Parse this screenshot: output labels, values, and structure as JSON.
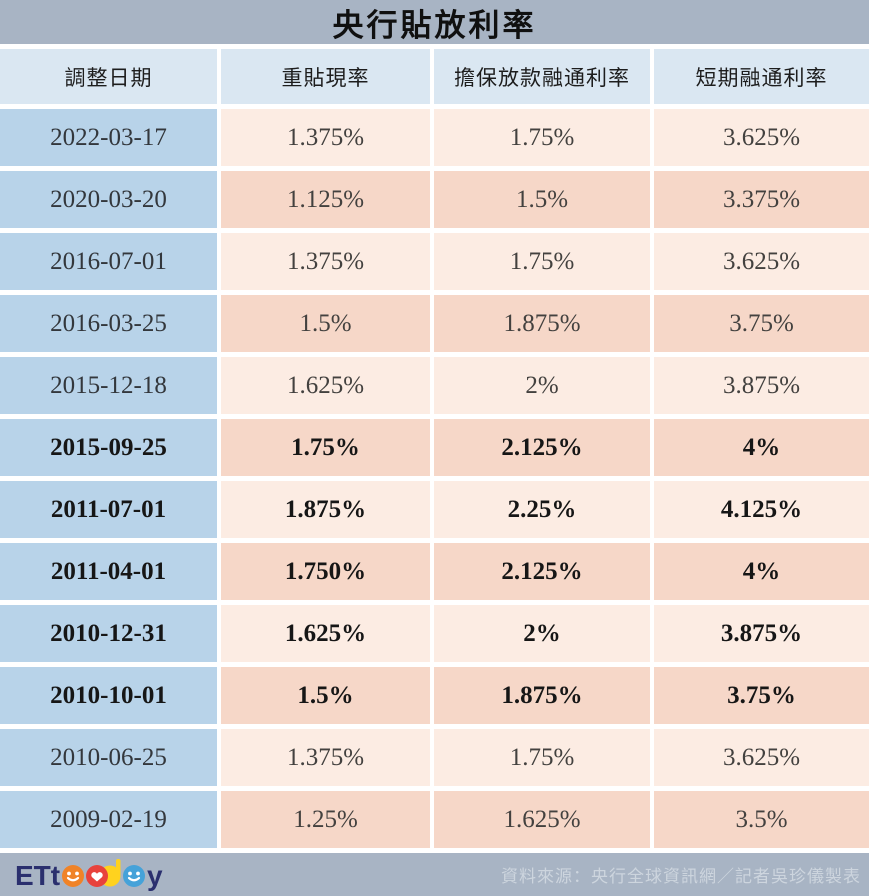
{
  "chart_data": {
    "type": "table",
    "title": "央行貼放利率",
    "columns": [
      "調整日期",
      "重貼現率",
      "擔保放款融通利率",
      "短期融通利率"
    ],
    "rows": [
      [
        "2022-03-17",
        "1.375%",
        "1.75%",
        "3.625%"
      ],
      [
        "2020-03-20",
        "1.125%",
        "1.5%",
        "3.375%"
      ],
      [
        "2016-07-01",
        "1.375%",
        "1.75%",
        "3.625%"
      ],
      [
        "2016-03-25",
        "1.5%",
        "1.875%",
        "3.75%"
      ],
      [
        "2015-12-18",
        "1.625%",
        "2%",
        "3.875%"
      ],
      [
        "2015-09-25",
        "1.75%",
        "2.125%",
        "4%"
      ],
      [
        "2011-07-01",
        "1.875%",
        "2.25%",
        "4.125%"
      ],
      [
        "2011-04-01",
        "1.750%",
        "2.125%",
        "4%"
      ],
      [
        "2010-12-31",
        "1.625%",
        "2%",
        "3.875%"
      ],
      [
        "2010-10-01",
        "1.5%",
        "1.875%",
        "3.75%"
      ],
      [
        "2010-06-25",
        "1.375%",
        "1.75%",
        "3.625%"
      ],
      [
        "2009-02-19",
        "1.25%",
        "1.625%",
        "3.5%"
      ]
    ]
  },
  "emphasis_rows": [
    5,
    6,
    7,
    8,
    9
  ],
  "footer": {
    "logo_text": "ETtoday",
    "source": "資料來源：央行全球資訊網／記者吳珍儀製表"
  },
  "colors": {
    "title_bar": "#a8b4c4",
    "header_cell": "#dae7f2",
    "date_cell": "#b8d3e9",
    "row_light": "#fcece3",
    "row_dark": "#f6d7c8",
    "footer_bar": "#a8b4c4",
    "footer_text": "#cdd5de",
    "logo_navy": "#2a2f6e",
    "logo_orange": "#f08327",
    "logo_red": "#e8423c",
    "logo_yellow": "#ffd21e",
    "logo_blue": "#45a2d9"
  }
}
